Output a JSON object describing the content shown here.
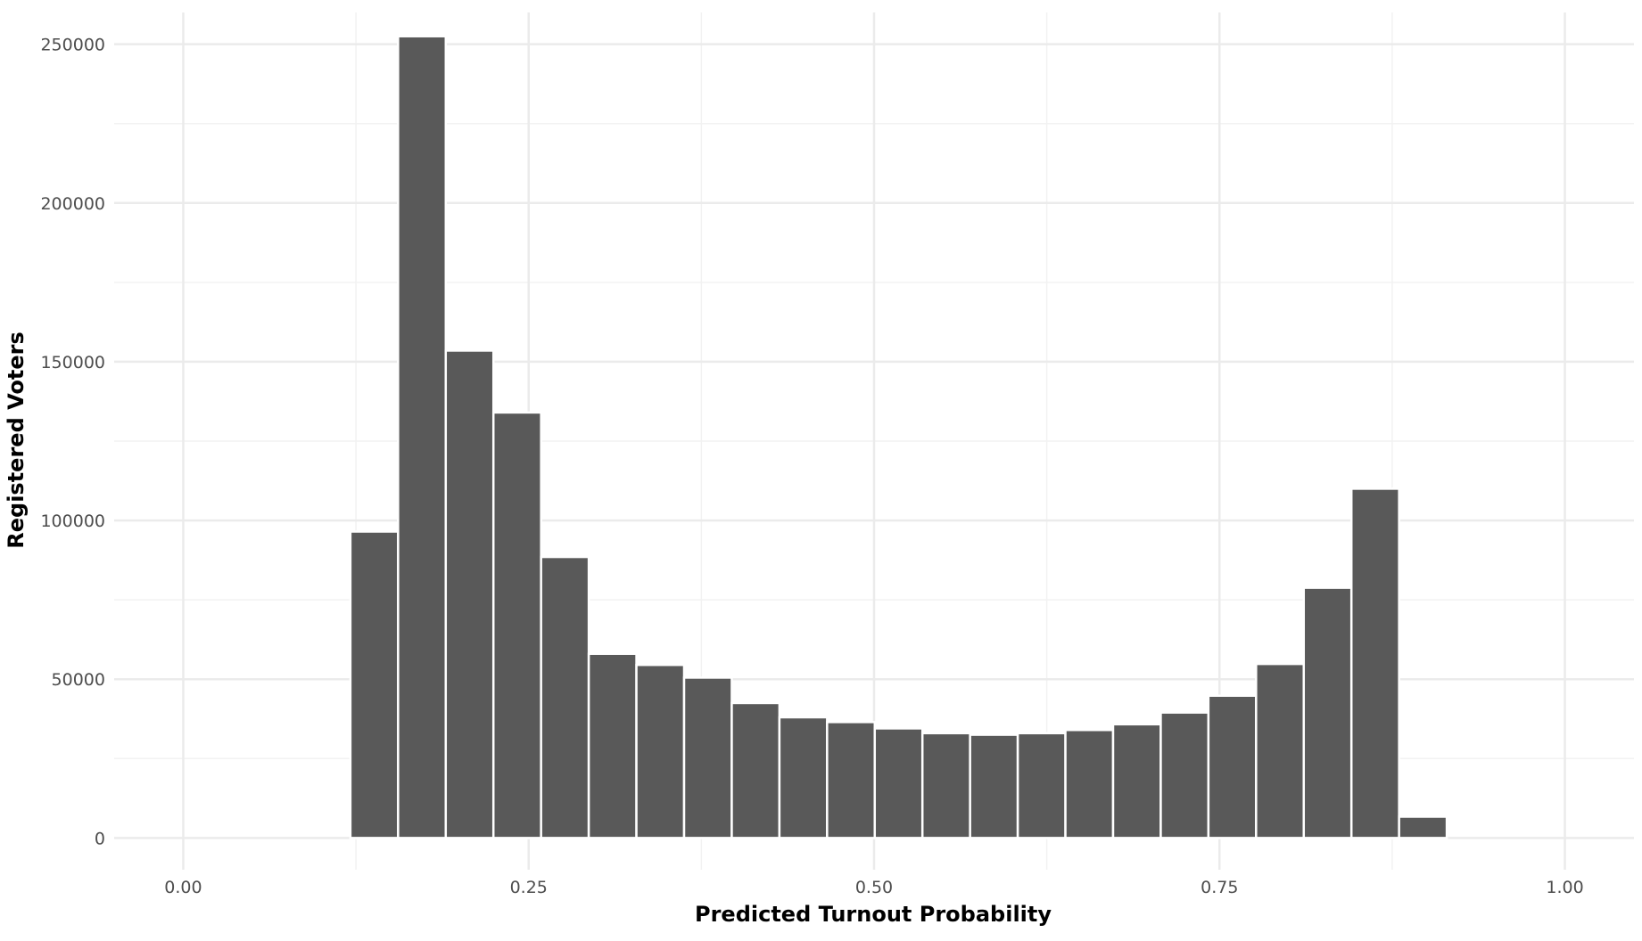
{
  "chart_data": {
    "type": "bar",
    "title": "",
    "xlabel": "Predicted Turnout Probability",
    "ylabel": "Registered Voters",
    "xlim": [
      -0.05,
      1.05
    ],
    "ylim": [
      -10000,
      260000
    ],
    "x_ticks": [
      0.0,
      0.25,
      0.5,
      0.75,
      1.0
    ],
    "x_tick_labels": [
      "0.00",
      "0.25",
      "0.50",
      "0.75",
      "1.00"
    ],
    "y_ticks": [
      0,
      50000,
      100000,
      150000,
      200000,
      250000
    ],
    "y_tick_labels": [
      "0",
      "50000",
      "100000",
      "150000",
      "200000",
      "250000"
    ],
    "grid": true,
    "legend": "none",
    "bin_width": 0.0345,
    "bins": [
      {
        "x0": 0.121,
        "x1": 0.1555,
        "count": 96500
      },
      {
        "x0": 0.1555,
        "x1": 0.19,
        "count": 252500
      },
      {
        "x0": 0.19,
        "x1": 0.2245,
        "count": 153500
      },
      {
        "x0": 0.2245,
        "x1": 0.259,
        "count": 134000
      },
      {
        "x0": 0.259,
        "x1": 0.2935,
        "count": 88500
      },
      {
        "x0": 0.2935,
        "x1": 0.328,
        "count": 58000
      },
      {
        "x0": 0.328,
        "x1": 0.3625,
        "count": 54500
      },
      {
        "x0": 0.3625,
        "x1": 0.397,
        "count": 50500
      },
      {
        "x0": 0.397,
        "x1": 0.4315,
        "count": 42500
      },
      {
        "x0": 0.4315,
        "x1": 0.466,
        "count": 38000
      },
      {
        "x0": 0.466,
        "x1": 0.5005,
        "count": 36500
      },
      {
        "x0": 0.5005,
        "x1": 0.535,
        "count": 34500
      },
      {
        "x0": 0.535,
        "x1": 0.5695,
        "count": 33000
      },
      {
        "x0": 0.5695,
        "x1": 0.604,
        "count": 32500
      },
      {
        "x0": 0.604,
        "x1": 0.6385,
        "count": 33000
      },
      {
        "x0": 0.6385,
        "x1": 0.673,
        "count": 34000
      },
      {
        "x0": 0.673,
        "x1": 0.7075,
        "count": 35800
      },
      {
        "x0": 0.7075,
        "x1": 0.742,
        "count": 39500
      },
      {
        "x0": 0.742,
        "x1": 0.7765,
        "count": 44800
      },
      {
        "x0": 0.7765,
        "x1": 0.811,
        "count": 54800
      },
      {
        "x0": 0.811,
        "x1": 0.8455,
        "count": 78800
      },
      {
        "x0": 0.8455,
        "x1": 0.88,
        "count": 110000
      },
      {
        "x0": 0.88,
        "x1": 0.9145,
        "count": 6700
      }
    ],
    "colors": {
      "bar_fill": "#595959",
      "bar_edge": "#ffffff",
      "grid_major": "#ebebeb",
      "grid_minor": "#f2f2f2",
      "tick_text": "#4d4d4d",
      "axis_title": "#000000"
    }
  }
}
